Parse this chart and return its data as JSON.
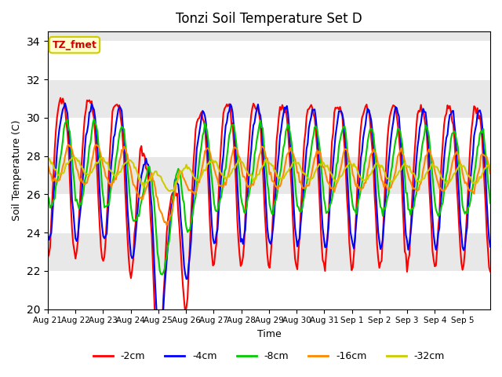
{
  "title": "Tonzi Soil Temperature Set D",
  "xlabel": "Time",
  "ylabel": "Soil Temperature (C)",
  "ylim": [
    20,
    34.5
  ],
  "yticks": [
    20,
    22,
    24,
    26,
    28,
    30,
    32,
    34
  ],
  "colors": {
    "-2cm": "#FF0000",
    "-4cm": "#0000FF",
    "-8cm": "#00CC00",
    "-16cm": "#FF8800",
    "-32cm": "#CCCC00"
  },
  "line_width": 1.5,
  "bg_color": "#E8E8E8",
  "annotation_text": "TZ_fmet",
  "annotation_bg": "#FFFFCC",
  "annotation_border": "#CCCC00",
  "annotation_color": "#CC0000",
  "days": 16,
  "tick_labels": [
    "Aug 21",
    "Aug 22",
    "Aug 23",
    "Aug 24",
    "Aug 25",
    "Aug 26",
    "Aug 27",
    "Aug 28",
    "Aug 29",
    "Aug 30",
    "Aug 31",
    "Sep 1",
    "Sep 2",
    "Sep 3",
    "Sep 4",
    "Sep 5"
  ]
}
